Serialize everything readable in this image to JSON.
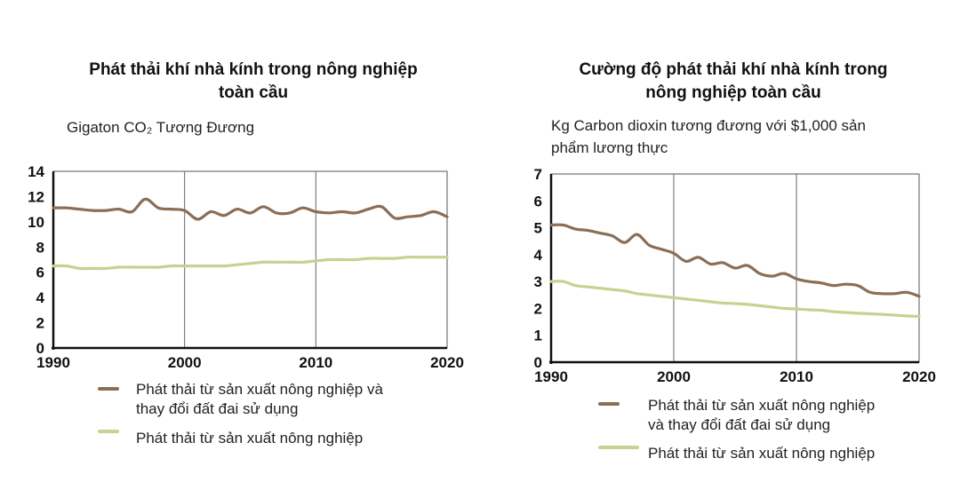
{
  "chart_data": [
    {
      "type": "line",
      "title": "Phát thải khí nhà kính trong nông nghiệp toàn cầu",
      "title_lines": [
        "Phát thải khí nhà kính trong nông nghiệp",
        "toàn cầu"
      ],
      "ylabel": "Gigaton CO₂ Tương Đương",
      "xlim": [
        1990,
        2020
      ],
      "ylim": [
        0,
        14
      ],
      "xticks": [
        "1990",
        "2000",
        "2010",
        "2020"
      ],
      "yticks": [
        "0",
        "2",
        "4",
        "6",
        "8",
        "10",
        "12",
        "14"
      ],
      "grid": "vertical",
      "legend_position": "bottom",
      "series": [
        {
          "name": "Phát thải từ sản xuất nông nghiệp và thay đổi đất đai sử dụng",
          "name_lines": [
            "Phát thải từ sản xuất nông nghiệp và",
            "thay đổi đất đai sử dụng"
          ],
          "color": "#8b6e55",
          "x": [
            1990,
            1991,
            1992,
            1993,
            1994,
            1995,
            1996,
            1997,
            1998,
            1999,
            2000,
            2001,
            2002,
            2003,
            2004,
            2005,
            2006,
            2007,
            2008,
            2009,
            2010,
            2011,
            2012,
            2013,
            2014,
            2015,
            2016,
            2017,
            2018,
            2019,
            2020
          ],
          "y": [
            11.1,
            11.1,
            11.0,
            10.9,
            10.9,
            11.0,
            10.8,
            11.8,
            11.1,
            11.0,
            10.9,
            10.2,
            10.8,
            10.5,
            11.0,
            10.7,
            11.2,
            10.7,
            10.7,
            11.1,
            10.8,
            10.7,
            10.8,
            10.7,
            11.0,
            11.2,
            10.3,
            10.4,
            10.5,
            10.8,
            10.4
          ]
        },
        {
          "name": "Phát thải từ sản xuất nông nghiệp",
          "name_lines": [
            "Phát thải từ sản xuất nông nghiệp"
          ],
          "color": "#c2d48f",
          "x": [
            1990,
            1991,
            1992,
            1993,
            1994,
            1995,
            1996,
            1997,
            1998,
            1999,
            2000,
            2001,
            2002,
            2003,
            2004,
            2005,
            2006,
            2007,
            2008,
            2009,
            2010,
            2011,
            2012,
            2013,
            2014,
            2015,
            2016,
            2017,
            2018,
            2019,
            2020
          ],
          "y": [
            6.5,
            6.5,
            6.3,
            6.3,
            6.3,
            6.4,
            6.4,
            6.4,
            6.4,
            6.5,
            6.5,
            6.5,
            6.5,
            6.5,
            6.6,
            6.7,
            6.8,
            6.8,
            6.8,
            6.8,
            6.9,
            7.0,
            7.0,
            7.0,
            7.1,
            7.1,
            7.1,
            7.2,
            7.2,
            7.2,
            7.2
          ]
        }
      ]
    },
    {
      "type": "line",
      "title": "Cường độ phát thải khí nhà kính trong nông nghiệp toàn cầu",
      "title_lines": [
        "Cường độ phát thải khí nhà kính trong",
        "nông nghiệp toàn cầu"
      ],
      "ylabel": "Kg Carbon dioxin tương đương với $1,000 sản phẩm lương thực",
      "ylabel_lines": [
        "Kg Carbon dioxin tương đương với $1,000 sản",
        "phẩm lương thực"
      ],
      "xlim": [
        1990,
        2020
      ],
      "ylim": [
        0,
        7
      ],
      "xticks": [
        "1990",
        "2000",
        "2010",
        "2020"
      ],
      "yticks": [
        "0",
        "1",
        "2",
        "3",
        "4",
        "5",
        "6",
        "7"
      ],
      "grid": "vertical",
      "legend_position": "bottom",
      "series": [
        {
          "name": "Phát thải từ sản xuất nông nghiệp và thay đổi đất đai sử dụng",
          "name_lines": [
            "Phát thải từ sản xuất nông nghiệp",
            "và thay đổi đất đai sử dụng"
          ],
          "color": "#8b6e55",
          "x": [
            1990,
            1991,
            1992,
            1993,
            1994,
            1995,
            1996,
            1997,
            1998,
            1999,
            2000,
            2001,
            2002,
            2003,
            2004,
            2005,
            2006,
            2007,
            2008,
            2009,
            2010,
            2011,
            2012,
            2013,
            2014,
            2015,
            2016,
            2017,
            2018,
            2019,
            2020
          ],
          "y": [
            5.1,
            5.1,
            4.95,
            4.9,
            4.8,
            4.7,
            4.45,
            4.75,
            4.35,
            4.2,
            4.05,
            3.75,
            3.9,
            3.65,
            3.7,
            3.5,
            3.6,
            3.3,
            3.2,
            3.3,
            3.1,
            3.0,
            2.95,
            2.85,
            2.9,
            2.85,
            2.6,
            2.55,
            2.55,
            2.6,
            2.45
          ]
        },
        {
          "name": "Phát thải từ sản xuất nông nghiệp",
          "name_lines": [
            "Phát thải từ sản xuất nông nghiệp"
          ],
          "color": "#c2d48f",
          "x": [
            1990,
            1991,
            1992,
            1993,
            1994,
            1995,
            1996,
            1997,
            1998,
            1999,
            2000,
            2001,
            2002,
            2003,
            2004,
            2005,
            2006,
            2007,
            2008,
            2009,
            2010,
            2011,
            2012,
            2013,
            2014,
            2015,
            2016,
            2017,
            2018,
            2019,
            2020
          ],
          "y": [
            3.0,
            3.0,
            2.85,
            2.8,
            2.75,
            2.7,
            2.65,
            2.55,
            2.5,
            2.45,
            2.4,
            2.35,
            2.3,
            2.25,
            2.2,
            2.18,
            2.15,
            2.1,
            2.05,
            2.0,
            1.98,
            1.95,
            1.93,
            1.88,
            1.85,
            1.82,
            1.8,
            1.78,
            1.75,
            1.72,
            1.7
          ]
        }
      ]
    }
  ]
}
